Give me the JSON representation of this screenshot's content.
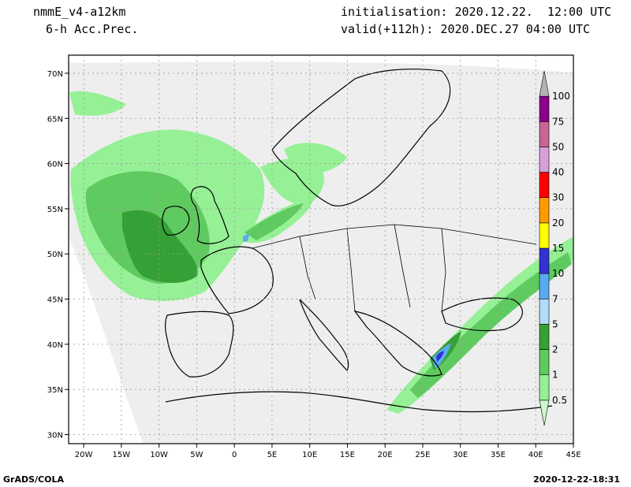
{
  "header": {
    "model": "nmmE_v4-a12km",
    "field": "6-h Acc.Prec.",
    "initialisation": "initialisation: 2020.12.22.  12:00 UTC",
    "valid": "valid(+112h): 2020.DEC.27 04:00 UTC"
  },
  "footer": {
    "left": "GrADS/COLA",
    "right": "2020-12-22-18:31"
  },
  "colors": {
    "domain": "#eeeeee",
    "coast": "#000000",
    "grid": "#9a9a9a"
  },
  "map": {
    "lon_ticks": [
      "20W",
      "15W",
      "10W",
      "5W",
      "0",
      "5E",
      "10E",
      "15E",
      "20E",
      "25E",
      "30E",
      "35E",
      "40E",
      "45E"
    ],
    "lat_ticks": [
      "30N",
      "35N",
      "40N",
      "45N",
      "50N",
      "55N",
      "60N",
      "65N",
      "70N"
    ]
  },
  "colorbar": [
    {
      "label": "0.5",
      "color": "#c8fac8"
    },
    {
      "label": "1",
      "color": "#96f096"
    },
    {
      "label": "2",
      "color": "#5fca5f"
    },
    {
      "label": "5",
      "color": "#35a035"
    },
    {
      "label": "7",
      "color": "#b2dcf8"
    },
    {
      "label": "10",
      "color": "#5aaaf0"
    },
    {
      "label": "15",
      "color": "#3232d2"
    },
    {
      "label": "20",
      "color": "#ffff00"
    },
    {
      "label": "30",
      "color": "#ff9a00"
    },
    {
      "label": "40",
      "color": "#ff0000"
    },
    {
      "label": "50",
      "color": "#d8a0d8"
    },
    {
      "label": "75",
      "color": "#c86496"
    },
    {
      "label": "100",
      "color": "#8c008c"
    },
    {
      "label": "",
      "color": "#b4b4b4"
    }
  ]
}
